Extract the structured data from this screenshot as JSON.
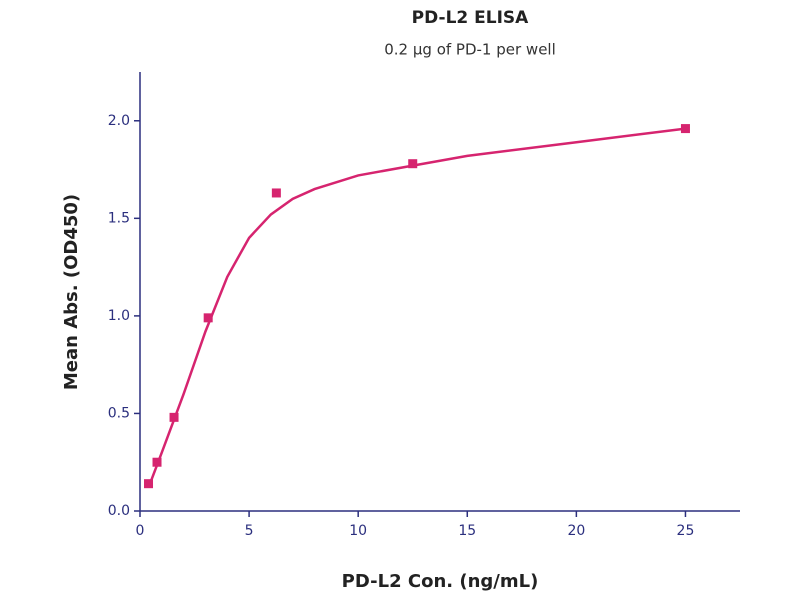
{
  "chart_data": {
    "type": "scatter",
    "title": "PD-L2 ELISA",
    "subtitle": "0.2 µg of PD-1 per well",
    "xlabel": "PD-L2 Con. (ng/mL)",
    "ylabel": "Mean Abs. (OD450)",
    "xlim": [
      0,
      27.5
    ],
    "ylim": [
      0,
      2.25
    ],
    "xticks": [
      0,
      5,
      10,
      15,
      20,
      25
    ],
    "yticks": [
      {
        "value": 0,
        "label": "0.0"
      },
      {
        "value": 0.5,
        "label": "0.5"
      },
      {
        "value": 1,
        "label": "1.0"
      },
      {
        "value": 1.5,
        "label": "1.5"
      },
      {
        "value": 2,
        "label": "2.0"
      }
    ],
    "axis_color": "#2b2f7e",
    "series": [
      {
        "style": "markers",
        "color": "#d6246f",
        "x": [
          0.39,
          0.78,
          1.56,
          3.125,
          6.25,
          12.5,
          25
        ],
        "values": [
          0.14,
          0.25,
          0.48,
          0.99,
          1.63,
          1.78,
          1.96
        ]
      },
      {
        "style": "line",
        "color": "#d6246f",
        "x": [
          0.39,
          1,
          2,
          3,
          4,
          5,
          6,
          7,
          8,
          10,
          12.5,
          15,
          20,
          25
        ],
        "values": [
          0.12,
          0.3,
          0.6,
          0.92,
          1.2,
          1.4,
          1.52,
          1.6,
          1.65,
          1.72,
          1.77,
          1.82,
          1.89,
          1.96
        ]
      }
    ]
  }
}
